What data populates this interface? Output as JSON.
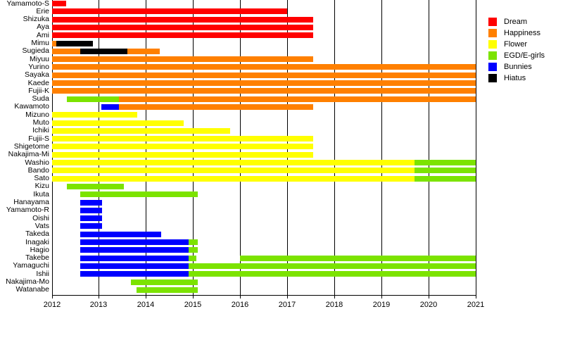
{
  "chart_data": {
    "type": "bar",
    "subtype": "gantt_membership_timeline",
    "title": "",
    "grid": true,
    "x_axis": {
      "min": 2012,
      "max": 2021,
      "ticks": [
        "2012",
        "2013",
        "2014",
        "2015",
        "2016",
        "2017",
        "2018",
        "2019",
        "2020",
        "2021"
      ]
    },
    "legend": {
      "position": "top-right",
      "items": [
        {
          "label": "Dream",
          "color": "#ff0000"
        },
        {
          "label": "Happiness",
          "color": "#ff8000"
        },
        {
          "label": "Flower",
          "color": "#ffff00"
        },
        {
          "label": "EGD/E-girls",
          "color": "#7ce300"
        },
        {
          "label": "Bunnies",
          "color": "#0000ff"
        },
        {
          "label": "Hiatus",
          "color": "#000000"
        }
      ]
    },
    "rows": [
      {
        "name": "Yamamoto-S",
        "segments": [
          {
            "group": "Dream",
            "start": 2012.0,
            "end": 2012.3
          }
        ]
      },
      {
        "name": "Erie",
        "segments": [
          {
            "group": "Dream",
            "start": 2012.0,
            "end": 2017.0
          }
        ]
      },
      {
        "name": "Shizuka",
        "segments": [
          {
            "group": "Dream",
            "start": 2012.0,
            "end": 2017.55
          }
        ]
      },
      {
        "name": "Aya",
        "segments": [
          {
            "group": "Dream",
            "start": 2012.0,
            "end": 2017.55
          }
        ]
      },
      {
        "name": "Ami",
        "segments": [
          {
            "group": "Dream",
            "start": 2012.0,
            "end": 2017.55
          }
        ]
      },
      {
        "name": "Mimu",
        "segments": [
          {
            "group": "Happiness",
            "start": 2012.0,
            "end": 2012.1
          },
          {
            "group": "Hiatus",
            "start": 2012.1,
            "end": 2012.87
          }
        ]
      },
      {
        "name": "Sugieda",
        "segments": [
          {
            "group": "Happiness",
            "start": 2012.0,
            "end": 2012.61
          },
          {
            "group": "Hiatus",
            "start": 2012.61,
            "end": 2013.61
          },
          {
            "group": "Happiness",
            "start": 2013.61,
            "end": 2014.3
          }
        ]
      },
      {
        "name": "Miyuu",
        "segments": [
          {
            "group": "Happiness",
            "start": 2012.0,
            "end": 2017.55
          }
        ]
      },
      {
        "name": "Yurino",
        "segments": [
          {
            "group": "Happiness",
            "start": 2012.0,
            "end": 2021.0
          }
        ]
      },
      {
        "name": "Sayaka",
        "segments": [
          {
            "group": "Happiness",
            "start": 2012.0,
            "end": 2021.0
          }
        ]
      },
      {
        "name": "Kaede",
        "segments": [
          {
            "group": "Happiness",
            "start": 2012.0,
            "end": 2021.0
          }
        ]
      },
      {
        "name": "Fujii-K",
        "segments": [
          {
            "group": "Happiness",
            "start": 2012.0,
            "end": 2021.0
          }
        ]
      },
      {
        "name": "Suda",
        "segments": [
          {
            "group": "EGD/E-girls",
            "start": 2012.32,
            "end": 2013.43
          },
          {
            "group": "Happiness",
            "start": 2013.43,
            "end": 2021.0
          }
        ]
      },
      {
        "name": "Kawamoto",
        "segments": [
          {
            "group": "Bunnies",
            "start": 2013.05,
            "end": 2013.43
          },
          {
            "group": "Happiness",
            "start": 2013.43,
            "end": 2017.55
          }
        ]
      },
      {
        "name": "Mizuno",
        "segments": [
          {
            "group": "Flower",
            "start": 2012.0,
            "end": 2013.81
          }
        ]
      },
      {
        "name": "Muto",
        "segments": [
          {
            "group": "Flower",
            "start": 2012.0,
            "end": 2014.8
          }
        ]
      },
      {
        "name": "Ichiki",
        "segments": [
          {
            "group": "Flower",
            "start": 2012.0,
            "end": 2015.79
          }
        ]
      },
      {
        "name": "Fujii-S",
        "segments": [
          {
            "group": "Flower",
            "start": 2012.0,
            "end": 2017.55
          }
        ]
      },
      {
        "name": "Shigetome",
        "segments": [
          {
            "group": "Flower",
            "start": 2012.0,
            "end": 2017.55
          }
        ]
      },
      {
        "name": "Nakajima-Mi",
        "segments": [
          {
            "group": "Flower",
            "start": 2012.0,
            "end": 2017.55
          }
        ]
      },
      {
        "name": "Washio",
        "segments": [
          {
            "group": "Flower",
            "start": 2012.0,
            "end": 2019.7
          },
          {
            "group": "EGD/E-girls",
            "start": 2019.7,
            "end": 2021.0
          }
        ]
      },
      {
        "name": "Bando",
        "segments": [
          {
            "group": "Flower",
            "start": 2012.0,
            "end": 2019.7
          },
          {
            "group": "EGD/E-girls",
            "start": 2019.7,
            "end": 2021.0
          }
        ]
      },
      {
        "name": "Sato",
        "segments": [
          {
            "group": "Flower",
            "start": 2012.0,
            "end": 2019.7
          },
          {
            "group": "EGD/E-girls",
            "start": 2019.7,
            "end": 2021.0
          }
        ]
      },
      {
        "name": "Kizu",
        "segments": [
          {
            "group": "EGD/E-girls",
            "start": 2012.32,
            "end": 2013.53
          }
        ]
      },
      {
        "name": "Ikuta",
        "segments": [
          {
            "group": "EGD/E-girls",
            "start": 2012.61,
            "end": 2015.1
          }
        ]
      },
      {
        "name": "Hanayama",
        "segments": [
          {
            "group": "Bunnies",
            "start": 2012.61,
            "end": 2013.07
          }
        ]
      },
      {
        "name": "Yamamoto-R",
        "segments": [
          {
            "group": "Bunnies",
            "start": 2012.61,
            "end": 2013.07
          }
        ]
      },
      {
        "name": "Oishi",
        "segments": [
          {
            "group": "Bunnies",
            "start": 2012.61,
            "end": 2013.07
          }
        ]
      },
      {
        "name": "Vats",
        "segments": [
          {
            "group": "Bunnies",
            "start": 2012.61,
            "end": 2013.07
          }
        ]
      },
      {
        "name": "Takeda",
        "segments": [
          {
            "group": "Bunnies",
            "start": 2012.61,
            "end": 2014.32
          }
        ]
      },
      {
        "name": "Inagaki",
        "segments": [
          {
            "group": "Bunnies",
            "start": 2012.61,
            "end": 2014.9
          },
          {
            "group": "EGD/E-girls",
            "start": 2014.9,
            "end": 2015.1
          }
        ]
      },
      {
        "name": "Hagio",
        "segments": [
          {
            "group": "Bunnies",
            "start": 2012.61,
            "end": 2014.9
          },
          {
            "group": "EGD/E-girls",
            "start": 2014.9,
            "end": 2015.1
          }
        ]
      },
      {
        "name": "Takebe",
        "segments": [
          {
            "group": "Bunnies",
            "start": 2012.61,
            "end": 2014.9
          },
          {
            "group": "EGD/E-girls",
            "start": 2014.9,
            "end": 2015.07
          },
          {
            "group": "EGD/E-girls",
            "start": 2016.0,
            "end": 2021.0
          }
        ]
      },
      {
        "name": "Yamaguchi",
        "segments": [
          {
            "group": "Bunnies",
            "start": 2012.61,
            "end": 2014.9
          },
          {
            "group": "EGD/E-girls",
            "start": 2014.9,
            "end": 2021.0
          }
        ]
      },
      {
        "name": "Ishii",
        "segments": [
          {
            "group": "Bunnies",
            "start": 2012.61,
            "end": 2014.9
          },
          {
            "group": "EGD/E-girls",
            "start": 2014.9,
            "end": 2021.0
          }
        ]
      },
      {
        "name": "Nakajima-Mo",
        "segments": [
          {
            "group": "EGD/E-girls",
            "start": 2013.68,
            "end": 2015.1
          }
        ]
      },
      {
        "name": "Watanabe",
        "segments": [
          {
            "group": "EGD/E-girls",
            "start": 2013.8,
            "end": 2015.1
          }
        ]
      }
    ]
  }
}
